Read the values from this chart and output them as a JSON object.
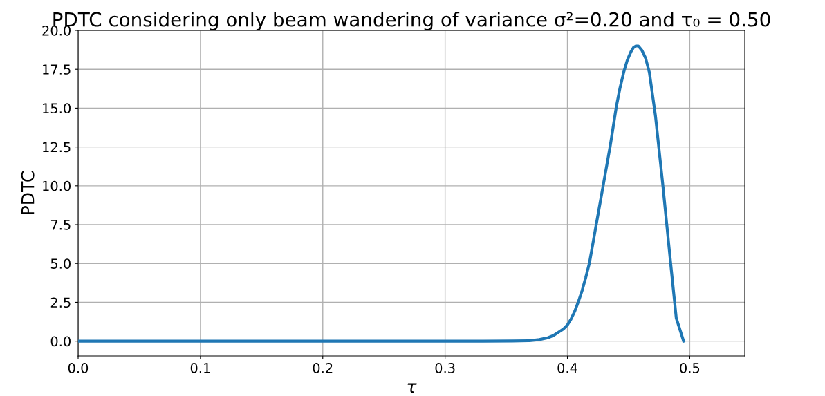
{
  "chart_data": {
    "type": "line",
    "title": "PDTC considering only beam wandering of variance σ²=0.20 and τ₀ = 0.50",
    "xlabel": "τ",
    "ylabel": "PDTC",
    "series": [
      {
        "color": "#1f77b4",
        "x": [
          0,
          0.1,
          0.2,
          0.3,
          0.331,
          0.355,
          0.369,
          0.377,
          0.384,
          0.389,
          0.393,
          0.397,
          0.4,
          0.403,
          0.406,
          0.409,
          0.412,
          0.415,
          0.418,
          0.423,
          0.429,
          0.435,
          0.44,
          0.443,
          0.446,
          0.449,
          0.452,
          0.454,
          0.456,
          0.458,
          0.461,
          0.464,
          0.467,
          0.472,
          0.478,
          0.484,
          0.489,
          0.495
        ],
        "values": [
          0,
          0,
          0,
          0,
          0,
          0.01,
          0.03,
          0.1,
          0.22,
          0.38,
          0.59,
          0.8,
          1.04,
          1.42,
          1.92,
          2.55,
          3.25,
          4.1,
          5.03,
          7.25,
          9.91,
          12.57,
          15.09,
          16.3,
          17.3,
          18.1,
          18.64,
          18.9,
          19.0,
          19.0,
          18.71,
          18.2,
          17.3,
          14.49,
          10.06,
          5.32,
          1.48,
          0
        ]
      }
    ],
    "xlim": [
      0,
      0.545
    ],
    "ylim": [
      -0.95,
      20
    ],
    "xticks": [
      {
        "value": 0,
        "label": "0.0"
      },
      0.1,
      0.2,
      0.3,
      0.4,
      0.5
    ],
    "yticks": [
      {
        "value": 0,
        "label": "0.0"
      },
      2.5,
      {
        "value": 5,
        "label": "5.0"
      },
      7.5,
      {
        "value": 10,
        "label": "10.0"
      },
      12.5,
      {
        "value": 15,
        "label": "15.0"
      },
      17.5,
      {
        "value": 20,
        "label": "20.0"
      }
    ],
    "grid": true,
    "line_style": "solid",
    "marker": "none"
  }
}
